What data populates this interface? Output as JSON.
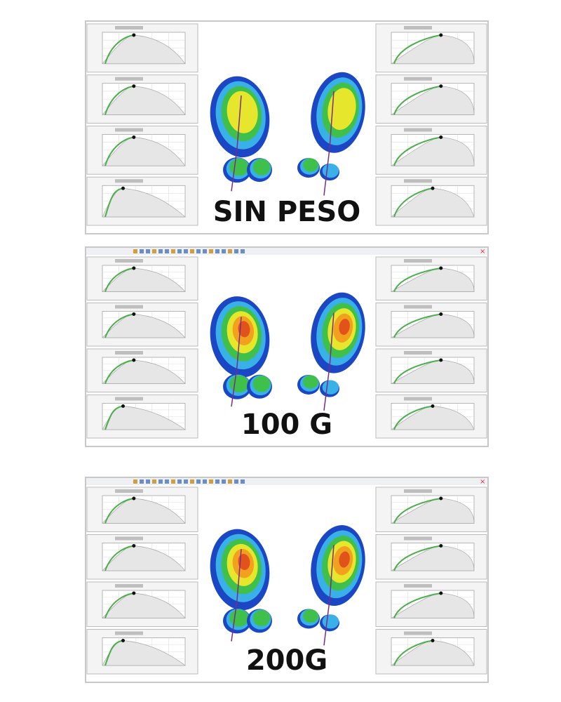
{
  "panels": [
    {
      "label": "SIN PESO"
    },
    {
      "label": "100 G"
    },
    {
      "label": "200G"
    }
  ]
}
